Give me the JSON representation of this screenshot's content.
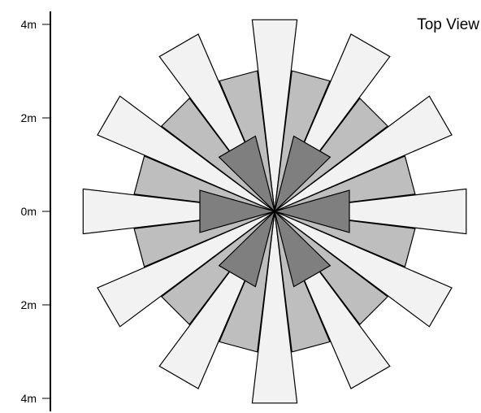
{
  "title": "Top View",
  "axis": {
    "ticks": [
      {
        "label": "4m",
        "value": 4
      },
      {
        "label": "2m",
        "value": 2
      },
      {
        "label": "0m",
        "value": 0
      },
      {
        "label": "2m",
        "value": -2
      },
      {
        "label": "4m",
        "value": -4
      }
    ]
  },
  "colors": {
    "inner": "#7f7f7f",
    "middle": "#bebebe",
    "outer": "#f2f2f2",
    "stroke": "#000000"
  },
  "chart_data": {
    "type": "rose",
    "rings": [
      {
        "name": "inner",
        "count": 6,
        "start_angle_deg": 0,
        "inner_radius_m": 1.6,
        "outer_radius_m": 1.6,
        "half_width_at_tip_m": 0.45
      },
      {
        "name": "middle",
        "count": 12,
        "start_angle_deg": 15,
        "inner_radius_m": 3.0,
        "outer_radius_m": 3.0,
        "half_width_at_tip_m": 0.42
      },
      {
        "name": "outer",
        "count": 12,
        "start_angle_deg": 0,
        "inner_radius_m": 4.1,
        "outer_radius_m": 4.1,
        "half_width_at_tip_m": 0.48
      }
    ]
  }
}
